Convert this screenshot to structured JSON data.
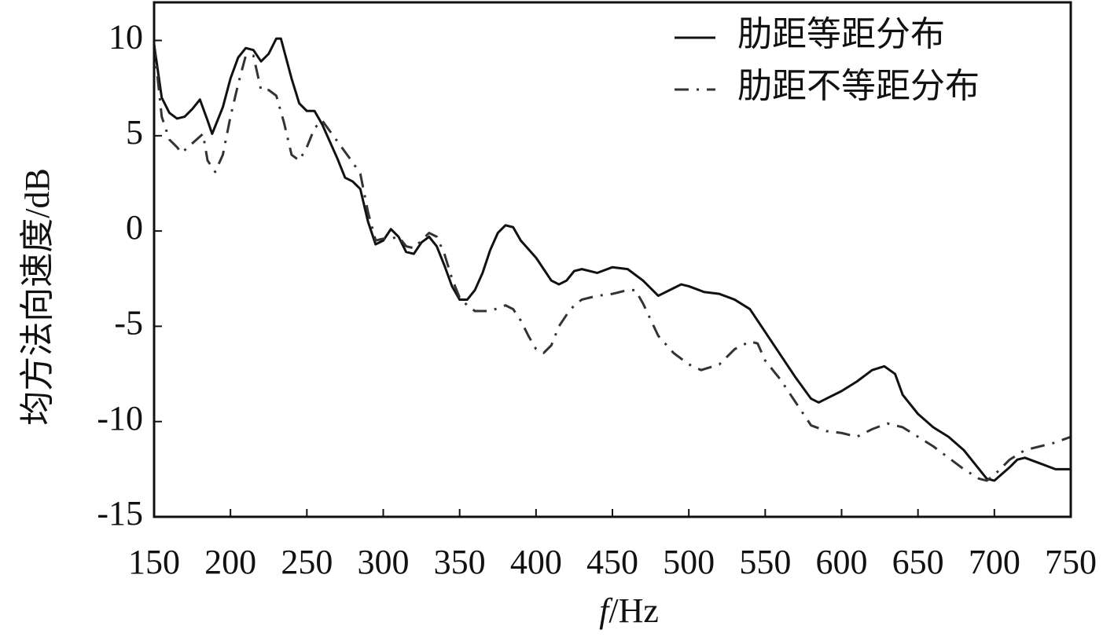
{
  "chart_data": {
    "type": "line",
    "xlabel": "f/Hz",
    "ylabel": "均方法向速度/dB",
    "xlim": [
      150,
      750
    ],
    "xticks": [
      150,
      200,
      250,
      300,
      350,
      400,
      450,
      500,
      550,
      600,
      650,
      700,
      750
    ],
    "ylim": [
      -15,
      12
    ],
    "yticks": [
      -15,
      -10,
      -5,
      0,
      5,
      10
    ],
    "legend": "upper right",
    "series": [
      {
        "name": "肋距等距分布",
        "color": "#111111",
        "style": "solid",
        "x": [
          150,
          155,
          160,
          165,
          170,
          175,
          180,
          185,
          188,
          195,
          200,
          205,
          210,
          215,
          220,
          225,
          230,
          233,
          240,
          245,
          250,
          255,
          260,
          270,
          275,
          280,
          285,
          290,
          295,
          300,
          305,
          310,
          315,
          320,
          325,
          330,
          335,
          340,
          345,
          350,
          355,
          360,
          365,
          370,
          375,
          380,
          385,
          390,
          400,
          405,
          410,
          415,
          420,
          425,
          430,
          440,
          450,
          460,
          470,
          480,
          490,
          495,
          500,
          510,
          520,
          530,
          540,
          550,
          560,
          570,
          580,
          585,
          590,
          600,
          610,
          620,
          628,
          635,
          640,
          650,
          660,
          670,
          680,
          690,
          695,
          700,
          710,
          715,
          720,
          730,
          740,
          750
        ],
        "values": [
          9.8,
          7,
          6.2,
          5.9,
          6,
          6.4,
          6.9,
          5.8,
          5.1,
          6.5,
          8,
          9.1,
          9.6,
          9.5,
          8.9,
          9.3,
          10.1,
          10.1,
          8,
          6.7,
          6.3,
          6.3,
          5.6,
          3.8,
          2.8,
          2.6,
          2.2,
          0.5,
          -0.7,
          -0.5,
          0.1,
          -0.3,
          -1.1,
          -1.2,
          -0.6,
          -0.3,
          -0.8,
          -1.8,
          -2.9,
          -3.6,
          -3.6,
          -3.1,
          -2.2,
          -1.0,
          -0.1,
          0.3,
          0.2,
          -0.5,
          -1.4,
          -2,
          -2.6,
          -2.8,
          -2.6,
          -2.1,
          -2,
          -2.2,
          -1.9,
          -2,
          -2.6,
          -3.4,
          -3,
          -2.8,
          -2.9,
          -3.2,
          -3.3,
          -3.6,
          -4.1,
          -5.3,
          -6.5,
          -7.7,
          -8.8,
          -9,
          -8.8,
          -8.4,
          -7.9,
          -7.3,
          -7.1,
          -7.5,
          -8.6,
          -9.6,
          -10.3,
          -10.8,
          -11.5,
          -12.5,
          -13,
          -13.1,
          -12.4,
          -12,
          -11.9,
          -12.2,
          -12.5,
          -12.5
        ]
      },
      {
        "name": "肋距不等距分布",
        "color": "#333333",
        "style": "dashdot",
        "x": [
          150,
          155,
          160,
          165,
          168,
          175,
          182,
          185,
          190,
          195,
          200,
          205,
          210,
          215,
          220,
          225,
          230,
          235,
          240,
          245,
          250,
          255,
          260,
          270,
          280,
          285,
          290,
          295,
          300,
          305,
          310,
          315,
          320,
          325,
          330,
          335,
          340,
          345,
          350,
          355,
          360,
          370,
          380,
          385,
          390,
          395,
          400,
          405,
          410,
          415,
          420,
          425,
          430,
          440,
          450,
          460,
          465,
          470,
          480,
          490,
          500,
          508,
          520,
          530,
          540,
          545,
          550,
          560,
          570,
          580,
          590,
          600,
          610,
          620,
          630,
          640,
          650,
          660,
          670,
          680,
          690,
          695,
          700,
          710,
          720,
          730,
          740,
          750
        ],
        "values": [
          9.8,
          6,
          4.8,
          4.4,
          4.1,
          4.6,
          5.1,
          3.7,
          3.1,
          4,
          6,
          7.7,
          9.2,
          9.2,
          7.4,
          7.4,
          7.1,
          5.7,
          4,
          3.7,
          4.4,
          5.4,
          5.8,
          4.7,
          3.6,
          3,
          1,
          -0.5,
          -0.4,
          -0.4,
          -0.3,
          -0.8,
          -0.9,
          -0.5,
          -0.1,
          -0.3,
          -1.2,
          -2.5,
          -3.5,
          -3.9,
          -4.2,
          -4.2,
          -3.9,
          -4.1,
          -4.7,
          -5.5,
          -6.2,
          -6.4,
          -6.0,
          -5,
          -4.4,
          -3.9,
          -3.6,
          -3.4,
          -3.3,
          -3.1,
          -3.1,
          -3.8,
          -5.5,
          -6.4,
          -7,
          -7.3,
          -7,
          -6.2,
          -5.8,
          -5.9,
          -6.8,
          -7.8,
          -9,
          -10.2,
          -10.5,
          -10.6,
          -10.8,
          -10.4,
          -10.1,
          -10.3,
          -10.8,
          -11.3,
          -11.9,
          -12.5,
          -13,
          -13.1,
          -12.8,
          -12,
          -11.5,
          -11.3,
          -11.1,
          -10.8
        ]
      }
    ]
  }
}
